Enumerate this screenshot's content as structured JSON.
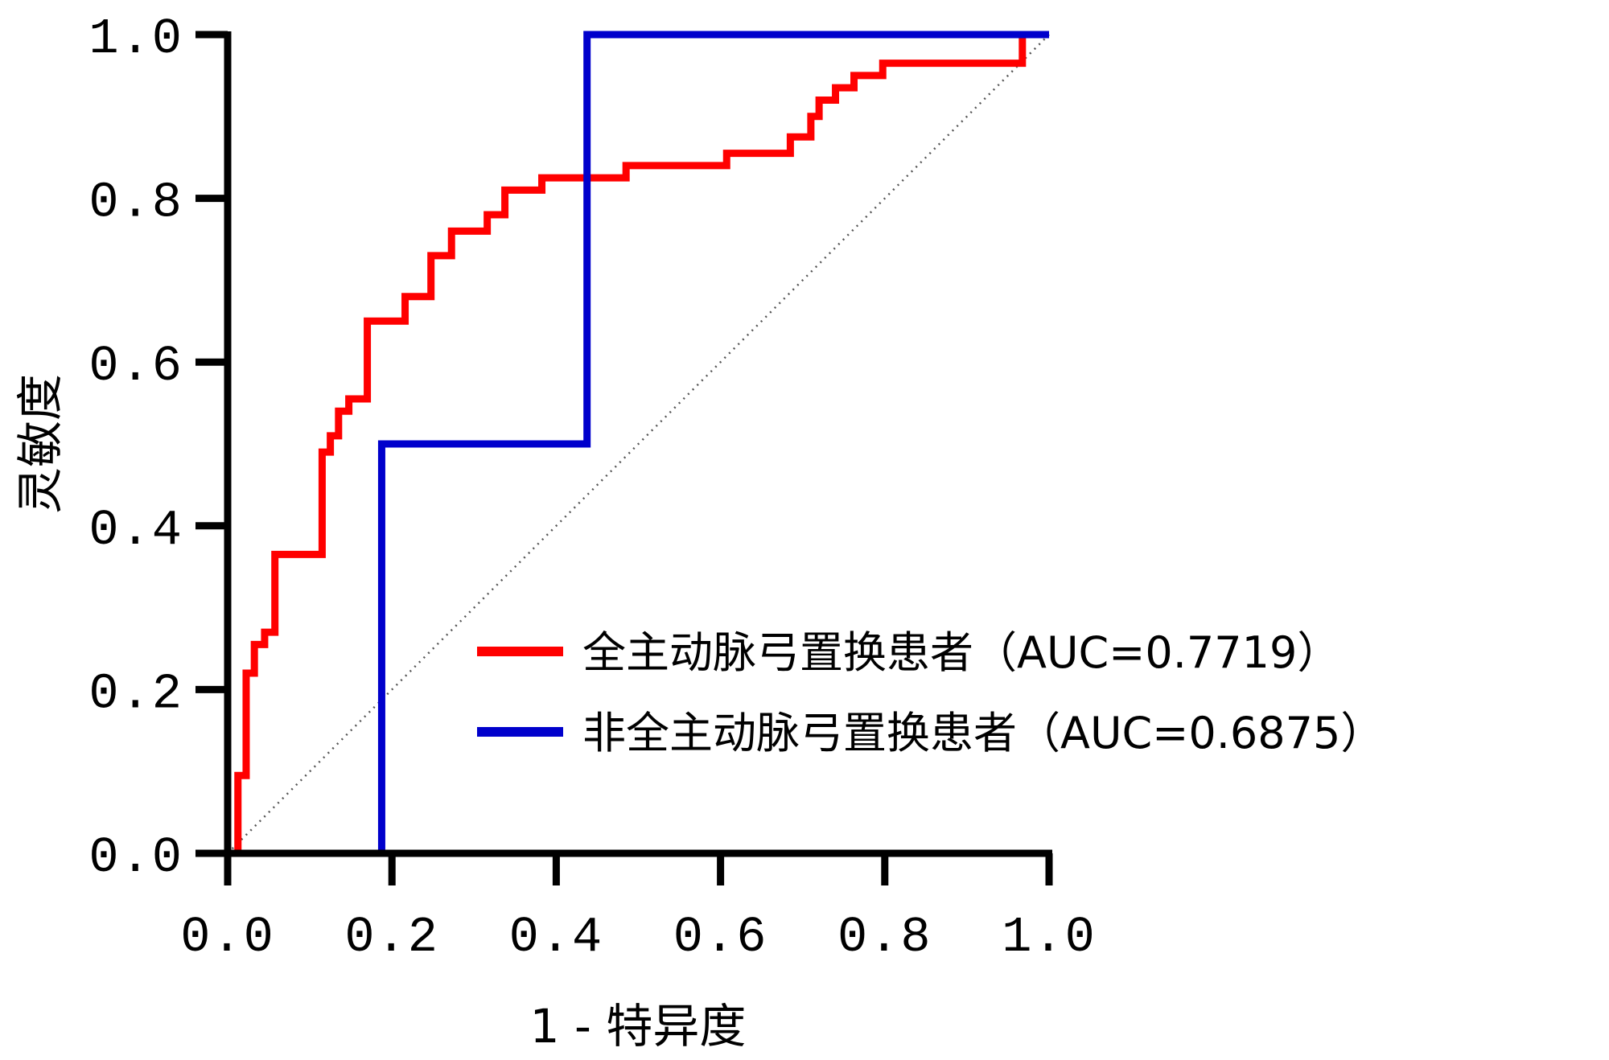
{
  "chart_data": {
    "type": "line",
    "title": "",
    "xlabel": "1 - 特异度",
    "ylabel": "灵敏度",
    "xlim": [
      0,
      1
    ],
    "ylim": [
      0,
      1
    ],
    "xticks": [
      "0.0",
      "0.2",
      "0.4",
      "0.6",
      "0.8",
      "1.0"
    ],
    "yticks": [
      "0.0",
      "0.2",
      "0.4",
      "0.6",
      "0.8",
      "1.0"
    ],
    "grid": false,
    "legend_position": "bottom-right",
    "reference_line": {
      "style": "dotted",
      "color": "#555555",
      "points": [
        [
          0,
          0
        ],
        [
          1,
          1
        ]
      ]
    },
    "series": [
      {
        "name": "全主动脉弓置换患者（AUC=0.7719）",
        "color": "#ff0000",
        "step": true,
        "x": [
          0,
          0.0125,
          0.0125,
          0.0225,
          0.0225,
          0.0325,
          0.0325,
          0.045,
          0.045,
          0.0575,
          0.0575,
          0.115,
          0.115,
          0.125,
          0.125,
          0.135,
          0.135,
          0.1475,
          0.1475,
          0.17,
          0.17,
          0.216,
          0.216,
          0.2475,
          0.2475,
          0.2725,
          0.2725,
          0.316,
          0.316,
          0.3375,
          0.3375,
          0.3825,
          0.3825,
          0.485,
          0.485,
          0.6075,
          0.6075,
          0.685,
          0.685,
          0.71,
          0.71,
          0.72,
          0.72,
          0.74,
          0.74,
          0.7625,
          0.7625,
          0.7975,
          0.7975,
          0.9675,
          0.9675,
          1
        ],
        "y": [
          0,
          0,
          0.095,
          0.095,
          0.22,
          0.22,
          0.255,
          0.255,
          0.27,
          0.27,
          0.365,
          0.365,
          0.49,
          0.49,
          0.51,
          0.51,
          0.54,
          0.54,
          0.555,
          0.555,
          0.65,
          0.65,
          0.68,
          0.68,
          0.73,
          0.73,
          0.76,
          0.76,
          0.78,
          0.78,
          0.81,
          0.81,
          0.825,
          0.825,
          0.84,
          0.84,
          0.855,
          0.855,
          0.875,
          0.875,
          0.9,
          0.9,
          0.92,
          0.92,
          0.935,
          0.935,
          0.95,
          0.95,
          0.965,
          0.965,
          1,
          1
        ]
      },
      {
        "name": "非全主动脉弓置换患者（AUC=0.6875）",
        "color": "#0000cc",
        "step": true,
        "x": [
          0,
          0.1875,
          0.1875,
          0.4375,
          0.4375,
          1
        ],
        "y": [
          0,
          0,
          0.5,
          0.5,
          1,
          1
        ]
      }
    ]
  }
}
